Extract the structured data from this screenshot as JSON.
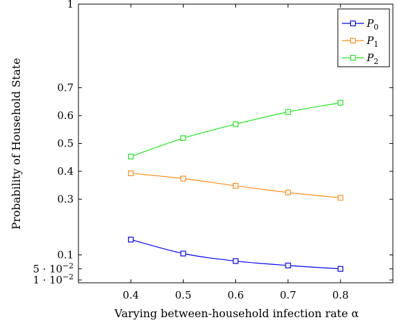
{
  "chart_data": {
    "type": "line",
    "xlabel": "Varying between-household infection rate α",
    "ylabel": "Probability of Household State",
    "x": [
      0.4,
      0.5,
      0.6,
      0.7,
      0.8
    ],
    "xlim": [
      0.3,
      0.9
    ],
    "ylim": [
      0.0,
      1.0
    ],
    "x_ticks": [
      {
        "value": 0.4,
        "label": "0.4"
      },
      {
        "value": 0.5,
        "label": "0.5"
      },
      {
        "value": 0.6,
        "label": "0.6"
      },
      {
        "value": 0.7,
        "label": "0.7"
      },
      {
        "value": 0.8,
        "label": "0.8"
      }
    ],
    "y_ticks": [
      {
        "value": 0.01,
        "label": "1 · 10",
        "exp": "−2"
      },
      {
        "value": 0.05,
        "label": "5 · 10",
        "exp": "−2"
      },
      {
        "value": 0.1,
        "label": "0.1"
      },
      {
        "value": 0.3,
        "label": "0.3"
      },
      {
        "value": 0.4,
        "label": "0.4"
      },
      {
        "value": 0.5,
        "label": "0.5"
      },
      {
        "value": 0.6,
        "label": "0.6"
      },
      {
        "value": 0.7,
        "label": "0.7"
      },
      {
        "value": 1.0,
        "label": "1"
      }
    ],
    "series": [
      {
        "name": "P",
        "sub": "0",
        "color": "#0000ff",
        "values": [
          0.155,
          0.105,
          0.078,
          0.062,
          0.05
        ]
      },
      {
        "name": "P",
        "sub": "1",
        "color": "#ff8c1a",
        "values": [
          0.393,
          0.374,
          0.348,
          0.324,
          0.305
        ]
      },
      {
        "name": "P",
        "sub": "2",
        "color": "#1ee61e",
        "values": [
          0.453,
          0.519,
          0.569,
          0.613,
          0.646
        ]
      }
    ],
    "legend": "top-right",
    "grid": false,
    "marker": "square"
  }
}
